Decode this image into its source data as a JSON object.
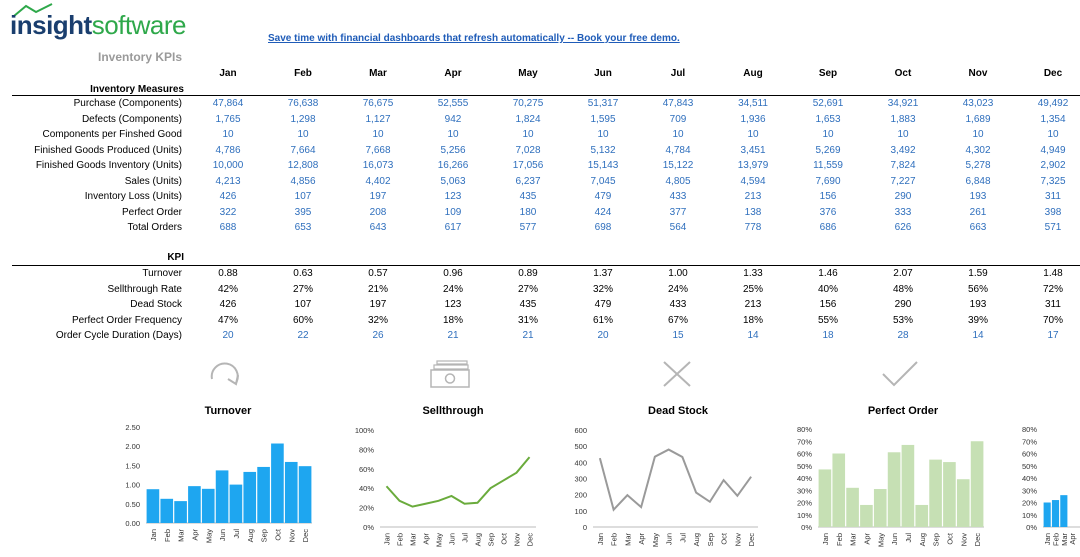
{
  "brand": {
    "part1": "insight",
    "part2": "software"
  },
  "page_title": "Inventory KPIs",
  "banner_link": "Save time with financial dashboards that refresh automatically -- Book your free demo.",
  "months": [
    "Jan",
    "Feb",
    "Mar",
    "Apr",
    "May",
    "Jun",
    "Jul",
    "Aug",
    "Sep",
    "Oct",
    "Nov",
    "Dec"
  ],
  "measures": {
    "header": "Inventory Measures",
    "rows": [
      {
        "label": "Purchase (Components)",
        "values": [
          "47,864",
          "76,638",
          "76,675",
          "52,555",
          "70,275",
          "51,317",
          "47,843",
          "34,511",
          "52,691",
          "34,921",
          "43,023",
          "49,492"
        ]
      },
      {
        "label": "Defects (Components)",
        "values": [
          "1,765",
          "1,298",
          "1,127",
          "942",
          "1,824",
          "1,595",
          "709",
          "1,936",
          "1,653",
          "1,883",
          "1,689",
          "1,354"
        ]
      },
      {
        "label": "Components per Finshed Good",
        "values": [
          "10",
          "10",
          "10",
          "10",
          "10",
          "10",
          "10",
          "10",
          "10",
          "10",
          "10",
          "10"
        ]
      },
      {
        "label": "Finished Goods Produced (Units)",
        "values": [
          "4,786",
          "7,664",
          "7,668",
          "5,256",
          "7,028",
          "5,132",
          "4,784",
          "3,451",
          "5,269",
          "3,492",
          "4,302",
          "4,949"
        ]
      },
      {
        "label": "Finished Goods Inventory (Units)",
        "values": [
          "10,000",
          "12,808",
          "16,073",
          "16,266",
          "17,056",
          "15,143",
          "15,122",
          "13,979",
          "11,559",
          "7,824",
          "5,278",
          "2,902"
        ]
      },
      {
        "label": "Sales (Units)",
        "values": [
          "4,213",
          "4,856",
          "4,402",
          "5,063",
          "6,237",
          "7,045",
          "4,805",
          "4,594",
          "7,690",
          "7,227",
          "6,848",
          "7,325"
        ]
      },
      {
        "label": "Inventory Loss (Units)",
        "values": [
          "426",
          "107",
          "197",
          "123",
          "435",
          "479",
          "433",
          "213",
          "156",
          "290",
          "193",
          "311"
        ]
      },
      {
        "label": "Perfect Order",
        "values": [
          "322",
          "395",
          "208",
          "109",
          "180",
          "424",
          "377",
          "138",
          "376",
          "333",
          "261",
          "398"
        ]
      },
      {
        "label": "Total Orders",
        "values": [
          "688",
          "653",
          "643",
          "617",
          "577",
          "698",
          "564",
          "778",
          "686",
          "626",
          "663",
          "571"
        ]
      }
    ]
  },
  "kpi": {
    "header": "KPI",
    "rows": [
      {
        "label": "Turnover",
        "color": "black",
        "values": [
          "0.88",
          "0.63",
          "0.57",
          "0.96",
          "0.89",
          "1.37",
          "1.00",
          "1.33",
          "1.46",
          "2.07",
          "1.59",
          "1.48"
        ]
      },
      {
        "label": "Sellthrough Rate",
        "color": "black",
        "values": [
          "42%",
          "27%",
          "21%",
          "24%",
          "27%",
          "32%",
          "24%",
          "25%",
          "40%",
          "48%",
          "56%",
          "72%"
        ]
      },
      {
        "label": "Dead Stock",
        "color": "black",
        "values": [
          "426",
          "107",
          "197",
          "123",
          "435",
          "479",
          "433",
          "213",
          "156",
          "290",
          "193",
          "311"
        ]
      },
      {
        "label": "Perfect Order Frequency",
        "color": "black",
        "values": [
          "47%",
          "60%",
          "32%",
          "18%",
          "31%",
          "61%",
          "67%",
          "18%",
          "55%",
          "53%",
          "39%",
          "70%"
        ]
      },
      {
        "label": "Order Cycle Duration (Days)",
        "color": "blue",
        "values": [
          "20",
          "22",
          "26",
          "21",
          "21",
          "20",
          "15",
          "14",
          "18",
          "28",
          "14",
          "17"
        ]
      }
    ]
  },
  "icons": [
    "refresh-arrow-icon",
    "cash-icon",
    "x-mark-icon",
    "checkmark-icon"
  ],
  "colors": {
    "blue_bar": "#1ea6f0",
    "green_line": "#6aab3c",
    "gray_line": "#9a9a9a",
    "green_bar": "#c6e0b4",
    "value_blue": "#2f6fbd"
  },
  "chart_data": [
    {
      "type": "bar",
      "title": "Turnover",
      "categories": [
        "Jan",
        "Feb",
        "Mar",
        "Apr",
        "May",
        "Jun",
        "Jul",
        "Aug",
        "Sep",
        "Oct",
        "Nov",
        "Dec"
      ],
      "values": [
        0.88,
        0.63,
        0.57,
        0.96,
        0.89,
        1.37,
        1.0,
        1.33,
        1.46,
        2.07,
        1.59,
        1.48
      ],
      "ylim": [
        0,
        2.5
      ],
      "yticks": [
        "0.00",
        "0.50",
        "1.00",
        "1.50",
        "2.00",
        "2.50"
      ],
      "color": "#1ea6f0"
    },
    {
      "type": "line",
      "title": "Sellthrough",
      "categories": [
        "Jan",
        "Feb",
        "Mar",
        "Apr",
        "May",
        "Jun",
        "Jul",
        "Aug",
        "Sep",
        "Oct",
        "Nov",
        "Dec"
      ],
      "values": [
        42,
        27,
        21,
        24,
        27,
        32,
        24,
        25,
        40,
        48,
        56,
        72
      ],
      "ylim": [
        0,
        100
      ],
      "yticks": [
        "0%",
        "20%",
        "40%",
        "60%",
        "80%",
        "100%"
      ],
      "color": "#6aab3c"
    },
    {
      "type": "line",
      "title": "Dead Stock",
      "categories": [
        "Jan",
        "Feb",
        "Mar",
        "Apr",
        "May",
        "Jun",
        "Jul",
        "Aug",
        "Sep",
        "Oct",
        "Nov",
        "Dec"
      ],
      "values": [
        426,
        107,
        197,
        123,
        435,
        479,
        433,
        213,
        156,
        290,
        193,
        311
      ],
      "ylim": [
        0,
        600
      ],
      "yticks": [
        "0",
        "100",
        "200",
        "300",
        "400",
        "500",
        "600"
      ],
      "color": "#9a9a9a"
    },
    {
      "type": "bar",
      "title": "Perfect Order",
      "categories": [
        "Jan",
        "Feb",
        "Mar",
        "Apr",
        "May",
        "Jun",
        "Jul",
        "Aug",
        "Sep",
        "Oct",
        "Nov",
        "Dec"
      ],
      "values": [
        47,
        60,
        32,
        18,
        31,
        61,
        67,
        18,
        55,
        53,
        39,
        70
      ],
      "ylim": [
        0,
        80
      ],
      "yticks": [
        "0%",
        "10%",
        "20%",
        "30%",
        "40%",
        "50%",
        "60%",
        "70%",
        "80%"
      ],
      "color": "#c6e0b4"
    },
    {
      "type": "bar",
      "title": "",
      "categories": [
        "Jan",
        "Feb",
        "Mar"
      ],
      "values": [
        20,
        22,
        26
      ],
      "ylim": [
        0,
        80
      ],
      "yticks": [
        "0%",
        "10%",
        "20%",
        "30%",
        "40%",
        "50%",
        "60%",
        "70%",
        "80%"
      ],
      "color": "#1ea6f0"
    }
  ]
}
